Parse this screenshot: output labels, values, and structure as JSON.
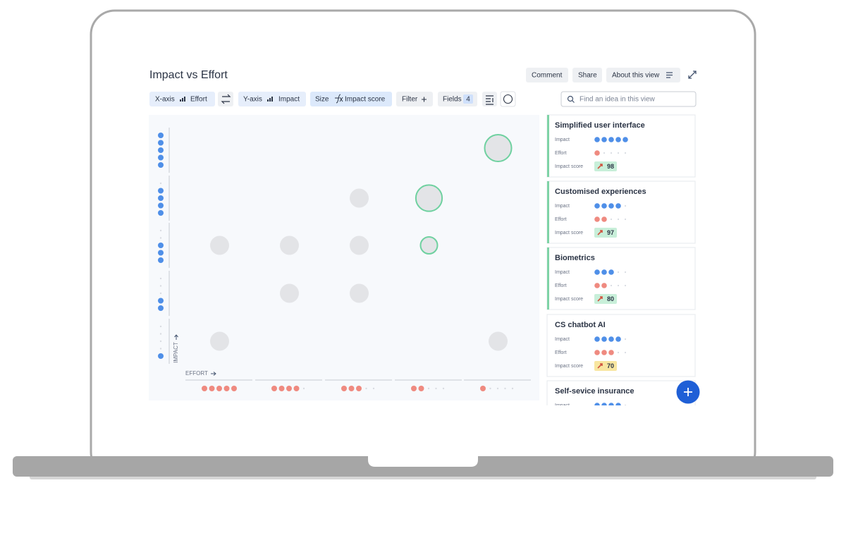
{
  "header": {
    "title": "Impact vs Effort",
    "actions": [
      "Comment",
      "Share",
      "About this view"
    ]
  },
  "toolbar": {
    "x_axis": {
      "label": "X-axis",
      "field": "Effort"
    },
    "y_axis": {
      "label": "Y-axis",
      "field": "Impact"
    },
    "size": {
      "label": "Size",
      "field": "Impact score"
    },
    "filter": "Filter",
    "fields": {
      "label": "Fields",
      "count": 4
    }
  },
  "search": {
    "placeholder": "Find an idea in this view"
  },
  "matrix": {
    "y_label": "IMPACT",
    "x_label": "EFFORT",
    "max": 5,
    "impact_levels": [
      5,
      4,
      3,
      2,
      1
    ],
    "effort_levels": [
      5,
      4,
      3,
      2,
      1
    ],
    "impact_color": "#4f8fe8",
    "effort_color": "#ef8a80",
    "bubbles": [
      {
        "effort": 1,
        "impact": 5,
        "score": 98
      },
      {
        "effort": 3,
        "impact": 4
      },
      {
        "effort": 2,
        "impact": 4,
        "score": 97
      },
      {
        "effort": 5,
        "impact": 3
      },
      {
        "effort": 4,
        "impact": 3
      },
      {
        "effort": 3,
        "impact": 3
      },
      {
        "effort": 2,
        "impact": 3,
        "score": 80
      },
      {
        "effort": 4,
        "impact": 2
      },
      {
        "effort": 3,
        "impact": 2
      },
      {
        "effort": 5,
        "impact": 1
      },
      {
        "effort": 1,
        "impact": 1
      }
    ]
  },
  "ideas": {
    "field_labels": {
      "impact": "Impact",
      "effort": "Effort",
      "score": "Impact score"
    },
    "cards": [
      {
        "name": "Simplified user interface",
        "impact": 5,
        "effort": 1,
        "score": 98,
        "highlighted": true,
        "badge_color": "#c8efd9"
      },
      {
        "name": "Customised experiences",
        "impact": 4,
        "effort": 2,
        "score": 97,
        "highlighted": true,
        "badge_color": "#c8efd9"
      },
      {
        "name": "Biometrics",
        "impact": 3,
        "effort": 2,
        "score": 80,
        "highlighted": true,
        "badge_color": "#c8efd9"
      },
      {
        "name": "CS chatbot AI",
        "impact": 4,
        "effort": 3,
        "score": 70,
        "highlighted": false,
        "badge_color": "#f8e6a0"
      },
      {
        "name": "Self-sevice insurance",
        "impact": 4
      }
    ]
  }
}
